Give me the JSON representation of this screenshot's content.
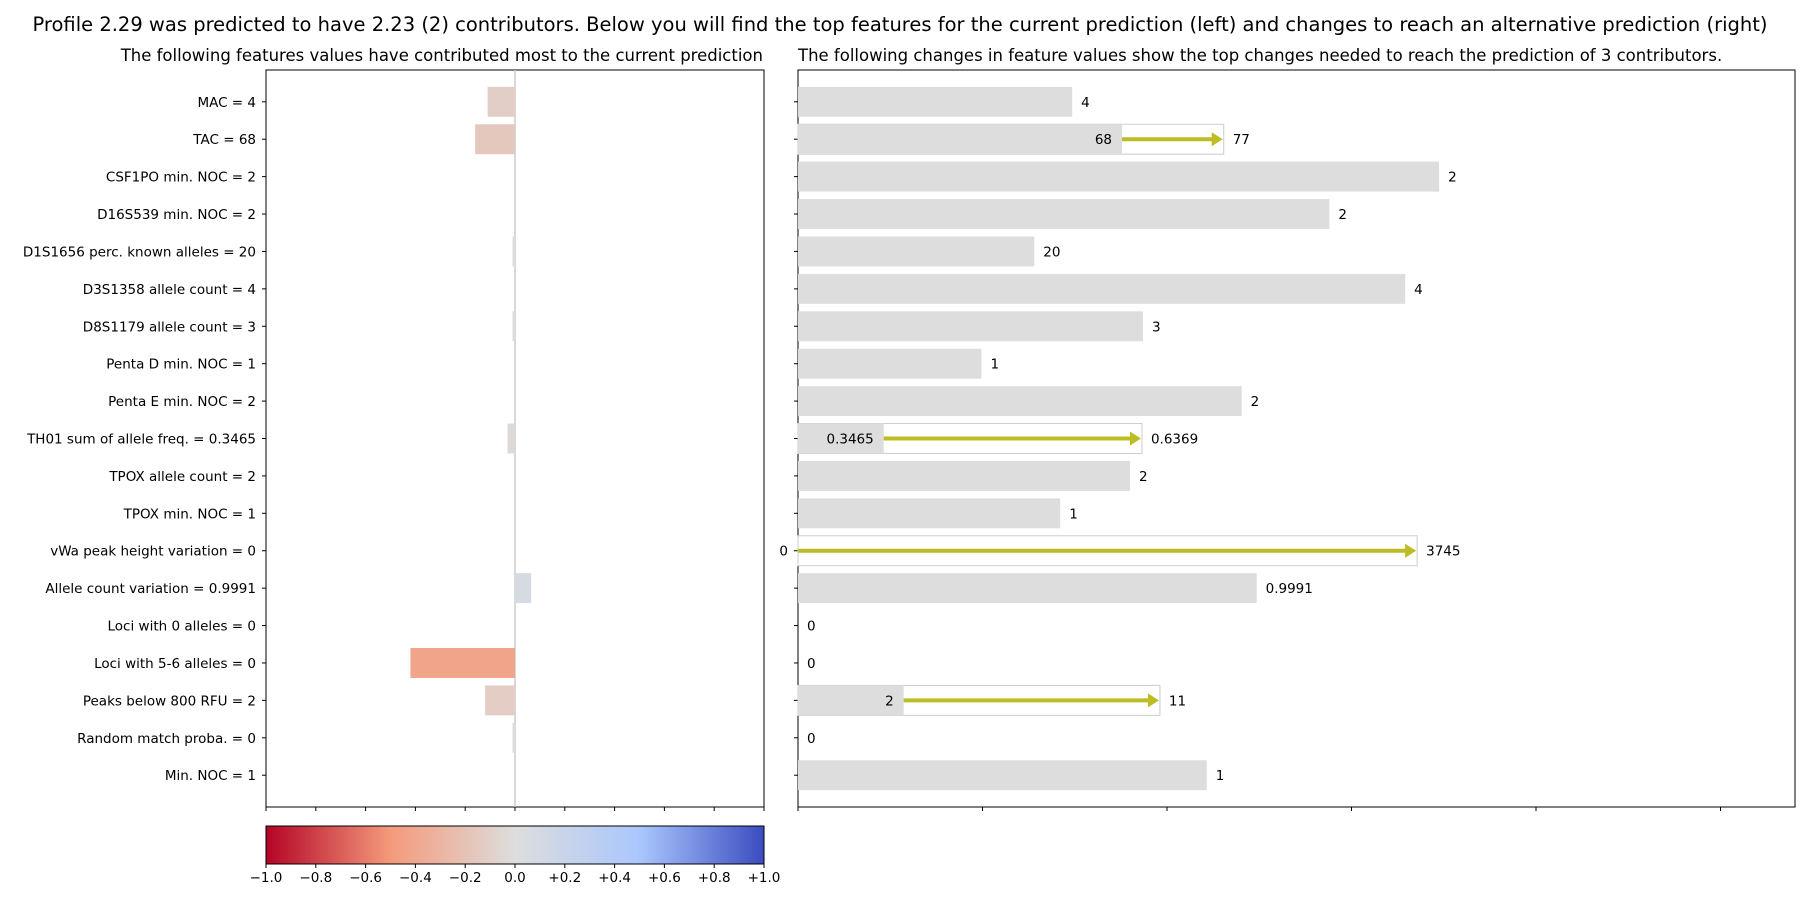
{
  "title": "Profile 2.29 was predicted to have 2.23 (2) contributors. Below you will find the top features for the current prediction (left) and changes to reach an alternative prediction (right)",
  "chart_data": [
    {
      "type": "bar",
      "orientation": "horizontal",
      "title": "The following features values have contributed most to the current prediction",
      "categories": [
        "MAC = 4",
        "TAC = 68",
        "CSF1PO min. NOC = 2",
        "D16S539 min. NOC = 2",
        "D1S1656 perc. known alleles = 20",
        "D3S1358 allele count = 4",
        "D8S1179 allele count = 3",
        "Penta D min. NOC = 1",
        "Penta E min. NOC = 2",
        "TH01 sum of allele freq. = 0.3465",
        "TPOX allele count = 2",
        "TPOX min. NOC = 1",
        "vWa peak height variation = 0",
        "Allele count variation = 0.9991",
        "Loci with 0 alleles = 0",
        "Loci with 5-6 alleles = 0",
        "Peaks below 800 RFU = 2",
        "Random match proba. = 0",
        "Min. NOC = 1"
      ],
      "values": [
        -0.11,
        -0.16,
        0,
        0,
        -0.01,
        0,
        -0.01,
        0,
        0,
        -0.03,
        0,
        0,
        0,
        0.065,
        0,
        -0.42,
        -0.12,
        -0.01,
        0
      ],
      "xlim": [
        -1.0,
        1.0
      ],
      "colormap": "coolwarm",
      "colorbar_ticks": [
        "−1.0",
        "−0.8",
        "−0.6",
        "−0.4",
        "−0.2",
        "0.0",
        "+0.2",
        "+0.4",
        "+0.6",
        "+0.8",
        "+1.0"
      ],
      "colorbar_values": [
        -1.0,
        -0.8,
        -0.6,
        -0.4,
        -0.2,
        0.0,
        0.2,
        0.4,
        0.6,
        0.8,
        1.0
      ],
      "grid": false
    },
    {
      "type": "bar",
      "orientation": "horizontal",
      "title": "The following changes in feature values show the top changes needed to reach the prediction of 3 contributors.",
      "x_units": "normalized (0-1)",
      "rows": [
        {
          "current": 0.275,
          "label": "4"
        },
        {
          "current": 0.325,
          "target": 0.427,
          "label": "68",
          "target_label": "77"
        },
        {
          "current": 0.643,
          "label": "2"
        },
        {
          "current": 0.533,
          "label": "2"
        },
        {
          "current": 0.237,
          "label": "20"
        },
        {
          "current": 0.609,
          "label": "4"
        },
        {
          "current": 0.346,
          "label": "3"
        },
        {
          "current": 0.184,
          "label": "1"
        },
        {
          "current": 0.445,
          "label": "2"
        },
        {
          "current": 0.086,
          "target": 0.345,
          "label": "0.3465",
          "target_label": "0.6369"
        },
        {
          "current": 0.333,
          "label": "2"
        },
        {
          "current": 0.263,
          "label": "1"
        },
        {
          "current": 0.0,
          "target": 0.621,
          "label": "0",
          "target_label": "3745"
        },
        {
          "current": 0.46,
          "label": "0.9991"
        },
        {
          "current": 0.0,
          "label": "0"
        },
        {
          "current": 0.0,
          "label": "0"
        },
        {
          "current": 0.106,
          "target": 0.363,
          "label": "2",
          "target_label": "11"
        },
        {
          "current": 0.0,
          "label": "0"
        },
        {
          "current": 0.41,
          "label": "1"
        }
      ],
      "xlim": [
        0,
        1
      ],
      "colors": {
        "bar": "#dddddd",
        "arrow": "#bcbd22",
        "target_box_edge": "#cccccc"
      },
      "grid": false
    }
  ]
}
